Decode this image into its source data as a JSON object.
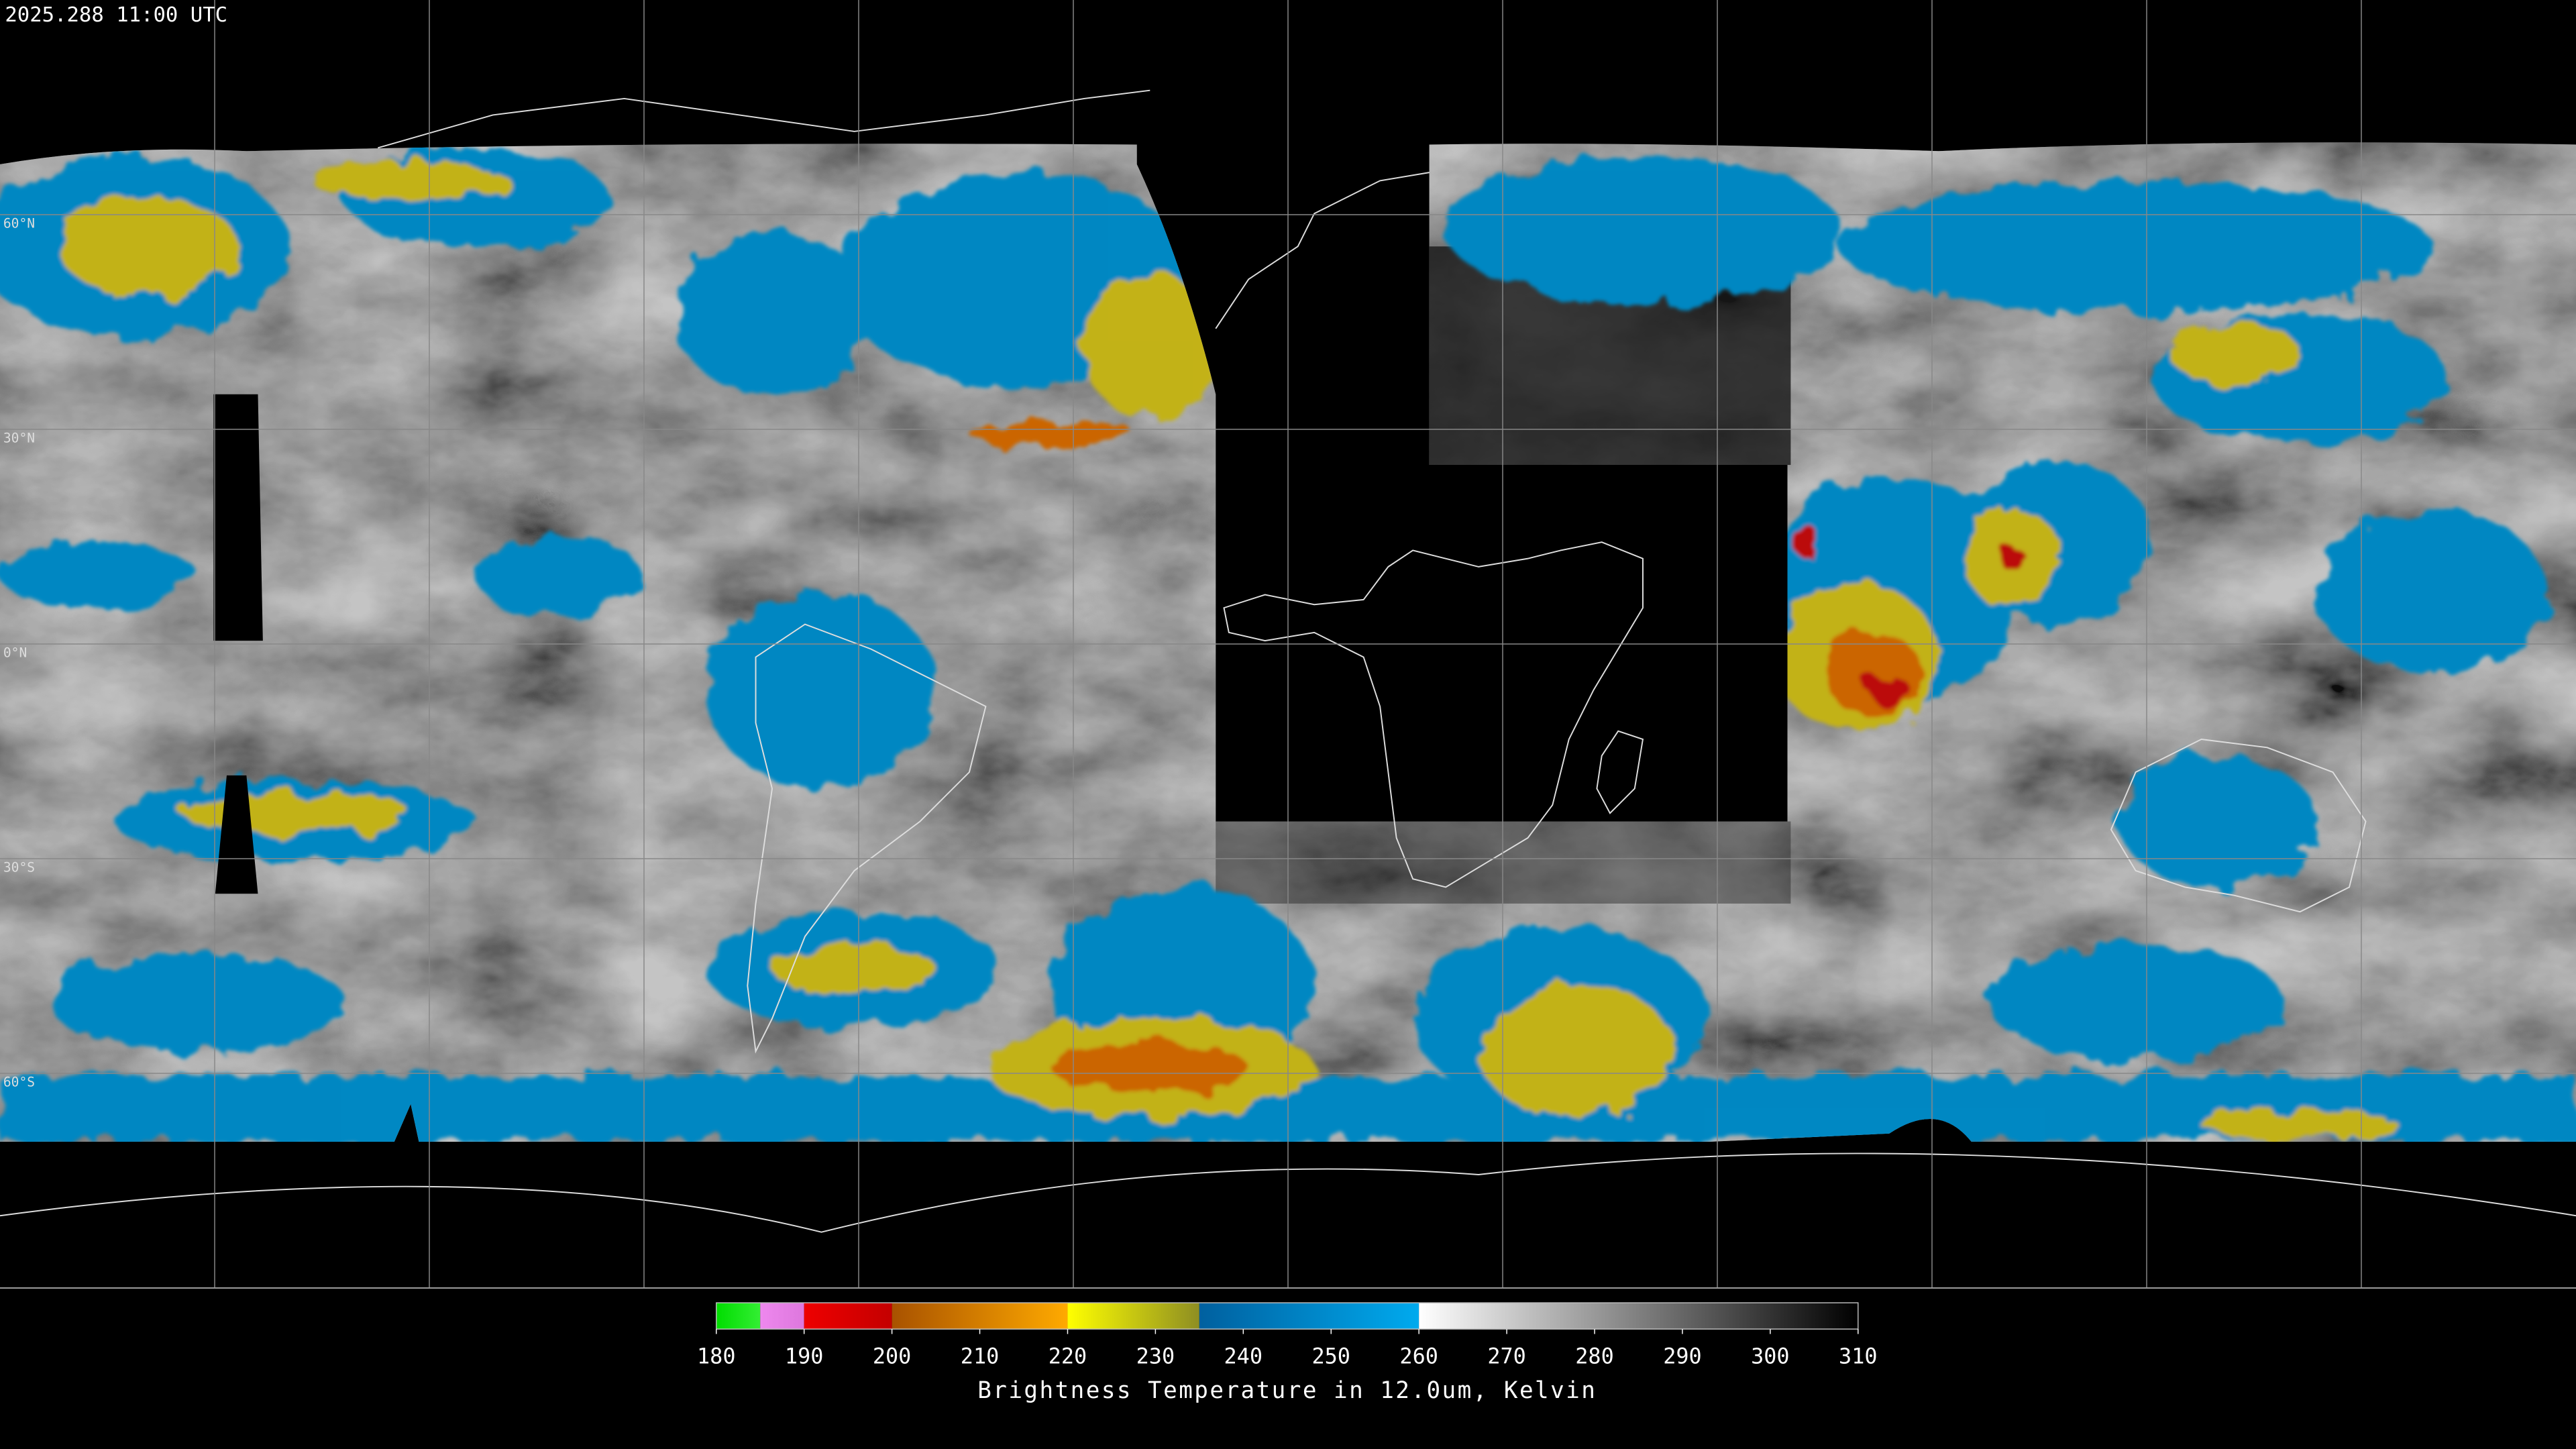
{
  "header": {
    "timestamp": "2025.288 11:00 UTC"
  },
  "map": {
    "lat_labels": [
      "60°N",
      "30°N",
      "0°N",
      "30°S",
      "60°S"
    ]
  },
  "colorbar": {
    "range": [
      180,
      310
    ],
    "ticks": [
      180,
      190,
      200,
      210,
      220,
      230,
      240,
      250,
      260,
      270,
      280,
      290,
      300,
      310
    ],
    "segments": [
      {
        "from": 180,
        "to": 185,
        "colors": [
          "#00dd00",
          "#33ee33"
        ]
      },
      {
        "from": 185,
        "to": 190,
        "colors": [
          "#ee88ee",
          "#dd77dd"
        ]
      },
      {
        "from": 190,
        "to": 200,
        "colors": [
          "#ee0000",
          "#c40000"
        ]
      },
      {
        "from": 200,
        "to": 220,
        "colors": [
          "#a85200",
          "#ffaa00"
        ]
      },
      {
        "from": 220,
        "to": 235,
        "colors": [
          "#ffff00",
          "#8e8e22"
        ]
      },
      {
        "from": 235,
        "to": 260,
        "colors": [
          "#00609f",
          "#00aaee"
        ]
      },
      {
        "from": 260,
        "to": 310,
        "colors": [
          "#ffffff",
          "#000000"
        ]
      }
    ],
    "label": "Brightness Temperature in 12.0um, Kelvin"
  }
}
